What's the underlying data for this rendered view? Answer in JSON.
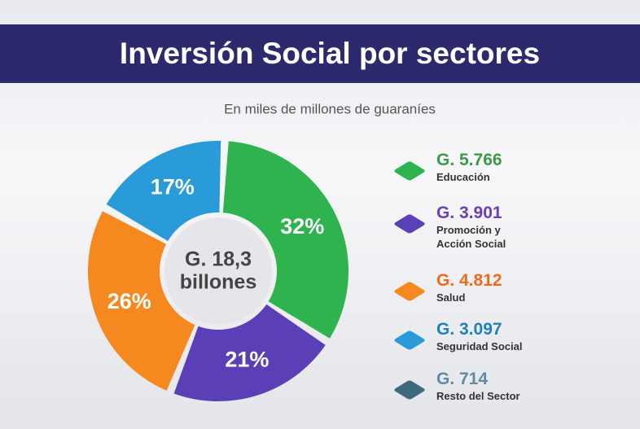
{
  "chart_data": {
    "type": "donut",
    "title": "Inversión Social por sectores",
    "subtitle": "En miles de millones de guaraníes",
    "center_label": [
      "G. 18,3",
      "billones"
    ],
    "categories": [
      "Educación",
      "Promoción y Acción Social",
      "Salud",
      "Seguridad Social",
      "Resto del Sector"
    ],
    "values": [
      32,
      21,
      26,
      17,
      null
    ],
    "value_labels": [
      "32%",
      "21%",
      "26%",
      "17%",
      null
    ],
    "amounts": [
      "G. 5.766",
      "G. 3.901",
      "G. 4.812",
      "G. 3.097",
      "G. 714"
    ],
    "colors": [
      "#2fb34f",
      "#5a3fb6",
      "#f5891f",
      "#2a9bd9",
      "#3e6a7d"
    ],
    "amount_colors": [
      "#3a9a4a",
      "#6a3fb0",
      "#f06a1a",
      "#1f80ba",
      "#5f8ca2"
    ]
  }
}
